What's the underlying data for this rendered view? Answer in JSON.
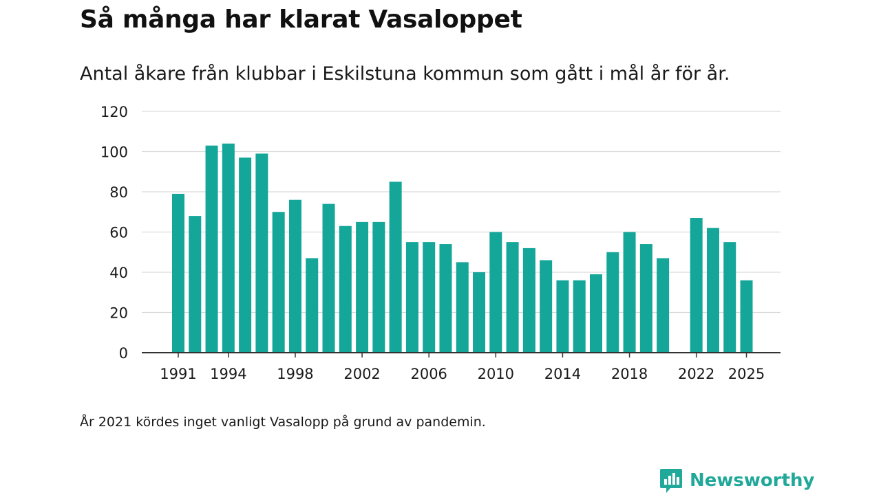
{
  "title": "Så många har klarat Vasaloppet",
  "subtitle": "Antal åkare från klubbar i Eskilstuna kommun som gått i mål år för år.",
  "note": "År 2021 kördes inget vanligt Vasalopp på grund av pandemin.",
  "brand": {
    "name": "Newsworthy",
    "icon": "newsworthy-logo-icon"
  },
  "colors": {
    "bar": "#14a699",
    "grid": "#d9d9d9",
    "axis": "#333333",
    "brand": "#20a89a"
  },
  "chart_data": {
    "type": "bar",
    "title": "Så många har klarat Vasaloppet",
    "subtitle": "Antal åkare från klubbar i Eskilstuna kommun som gått i mål år för år.",
    "xlabel": "",
    "ylabel": "",
    "ylim": [
      0,
      120
    ],
    "yticks": [
      0,
      20,
      40,
      60,
      80,
      100,
      120
    ],
    "xticks": [
      "1991",
      "1994",
      "1998",
      "2002",
      "2006",
      "2010",
      "2014",
      "2018",
      "2022",
      "2025"
    ],
    "categories": [
      "1991",
      "1992",
      "1993",
      "1994",
      "1995",
      "1996",
      "1997",
      "1998",
      "1999",
      "2000",
      "2001",
      "2002",
      "2003",
      "2004",
      "2005",
      "2006",
      "2007",
      "2008",
      "2009",
      "2010",
      "2011",
      "2012",
      "2013",
      "2014",
      "2015",
      "2016",
      "2017",
      "2018",
      "2019",
      "2020",
      "2021",
      "2022",
      "2023",
      "2024",
      "2025"
    ],
    "values": [
      79,
      68,
      103,
      104,
      97,
      99,
      70,
      76,
      47,
      74,
      63,
      65,
      65,
      85,
      55,
      55,
      54,
      45,
      40,
      60,
      55,
      52,
      46,
      36,
      36,
      39,
      50,
      60,
      54,
      47,
      null,
      67,
      62,
      55,
      36
    ],
    "grid": true
  }
}
